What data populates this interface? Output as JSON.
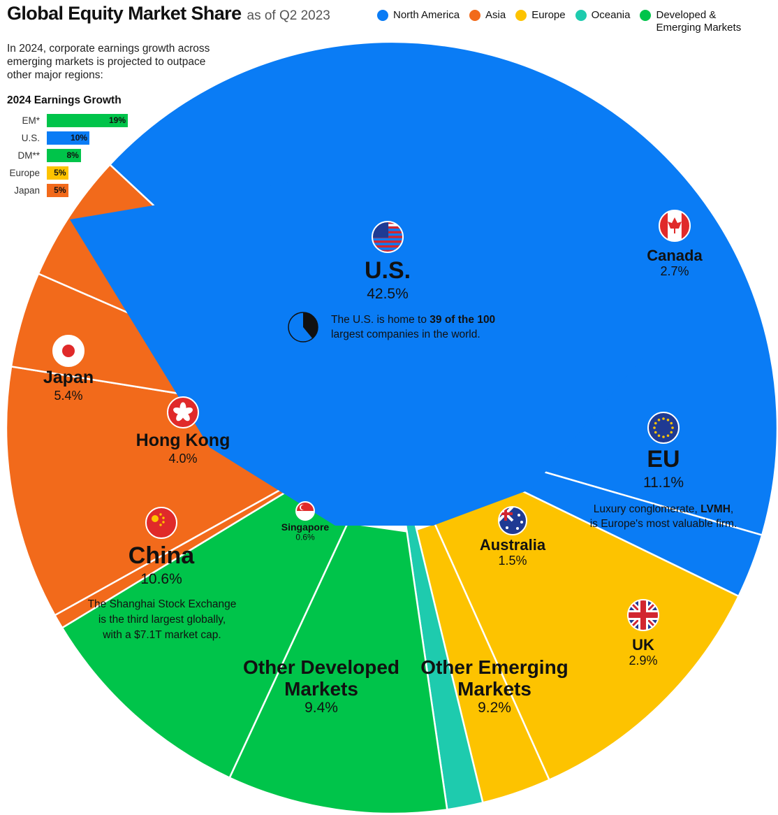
{
  "header": {
    "title": "Global Equity Market Share",
    "subtitle": "as of Q2 2023"
  },
  "legend": [
    {
      "label": "North America",
      "color": "#0a7cf5"
    },
    {
      "label": "Asia",
      "color": "#f26a1b"
    },
    {
      "label": "Europe",
      "color": "#fdc300"
    },
    {
      "label": "Oceania",
      "color": "#1ecbae"
    },
    {
      "label": "Developed & Emerging Markets",
      "color": "#00c44a"
    }
  ],
  "intro_text": "In 2024, corporate earnings growth across emerging markets is projected to outpace other major regions:",
  "earnings_growth": {
    "title": "2024 Earnings Growth",
    "rows": [
      {
        "label": "EM*",
        "value": 19,
        "display": "19%",
        "color": "#00c44a"
      },
      {
        "label": "U.S.",
        "value": 10,
        "display": "10%",
        "color": "#0a7cf5"
      },
      {
        "label": "DM**",
        "value": 8,
        "display": "8%",
        "color": "#00c44a"
      },
      {
        "label": "Europe",
        "value": 5,
        "display": "5%",
        "color": "#fdc300"
      },
      {
        "label": "Japan",
        "value": 5,
        "display": "5%",
        "color": "#f26a1b"
      }
    ]
  },
  "chart_data": {
    "type": "pie",
    "title": "Global Equity Market Share",
    "subtitle": "as of Q2 2023",
    "slices": [
      {
        "name": "U.S.",
        "value": 42.5,
        "display": "42.5%",
        "group": "North America",
        "color": "#0a7cf5",
        "note_parts": [
          "The U.S. is home to ",
          "39 of the 100",
          " largest companies in the world."
        ]
      },
      {
        "name": "Canada",
        "value": 2.7,
        "display": "2.7%",
        "group": "North America",
        "color": "#0a7cf5"
      },
      {
        "name": "EU",
        "value": 11.1,
        "display": "11.1%",
        "group": "Europe",
        "color": "#fdc300",
        "note_parts": [
          "Luxury conglomerate, ",
          "LVMH",
          ",",
          "is Europe's most valuable firm."
        ]
      },
      {
        "name": "UK",
        "value": 2.9,
        "display": "2.9%",
        "group": "Europe",
        "color": "#fdc300"
      },
      {
        "name": "Australia",
        "value": 1.5,
        "display": "1.5%",
        "group": "Oceania",
        "color": "#1ecbae"
      },
      {
        "name": "Other Emerging Markets",
        "value": 9.2,
        "display": "9.2%",
        "group": "Developed & Emerging Markets",
        "color": "#00c44a"
      },
      {
        "name": "Other Developed Markets",
        "value": 9.4,
        "display": "9.4%",
        "group": "Developed & Emerging Markets",
        "color": "#00c44a"
      },
      {
        "name": "Singapore",
        "value": 0.6,
        "display": "0.6%",
        "group": "Asia",
        "color": "#f26a1b"
      },
      {
        "name": "China",
        "value": 10.6,
        "display": "10.6%",
        "group": "Asia",
        "color": "#f26a1b",
        "note_parts": [
          "The Shanghai Stock Exchange",
          "is the third largest globally,",
          "with a ",
          "$7.1T",
          " market cap."
        ]
      },
      {
        "name": "Hong Kong",
        "value": 4.0,
        "display": "4.0%",
        "group": "Asia",
        "color": "#f26a1b"
      },
      {
        "name": "Japan",
        "value": 5.4,
        "display": "5.4%",
        "group": "Asia",
        "color": "#f26a1b"
      }
    ],
    "us_companies_in_top_100": {
      "value": 39,
      "total": 100
    }
  }
}
